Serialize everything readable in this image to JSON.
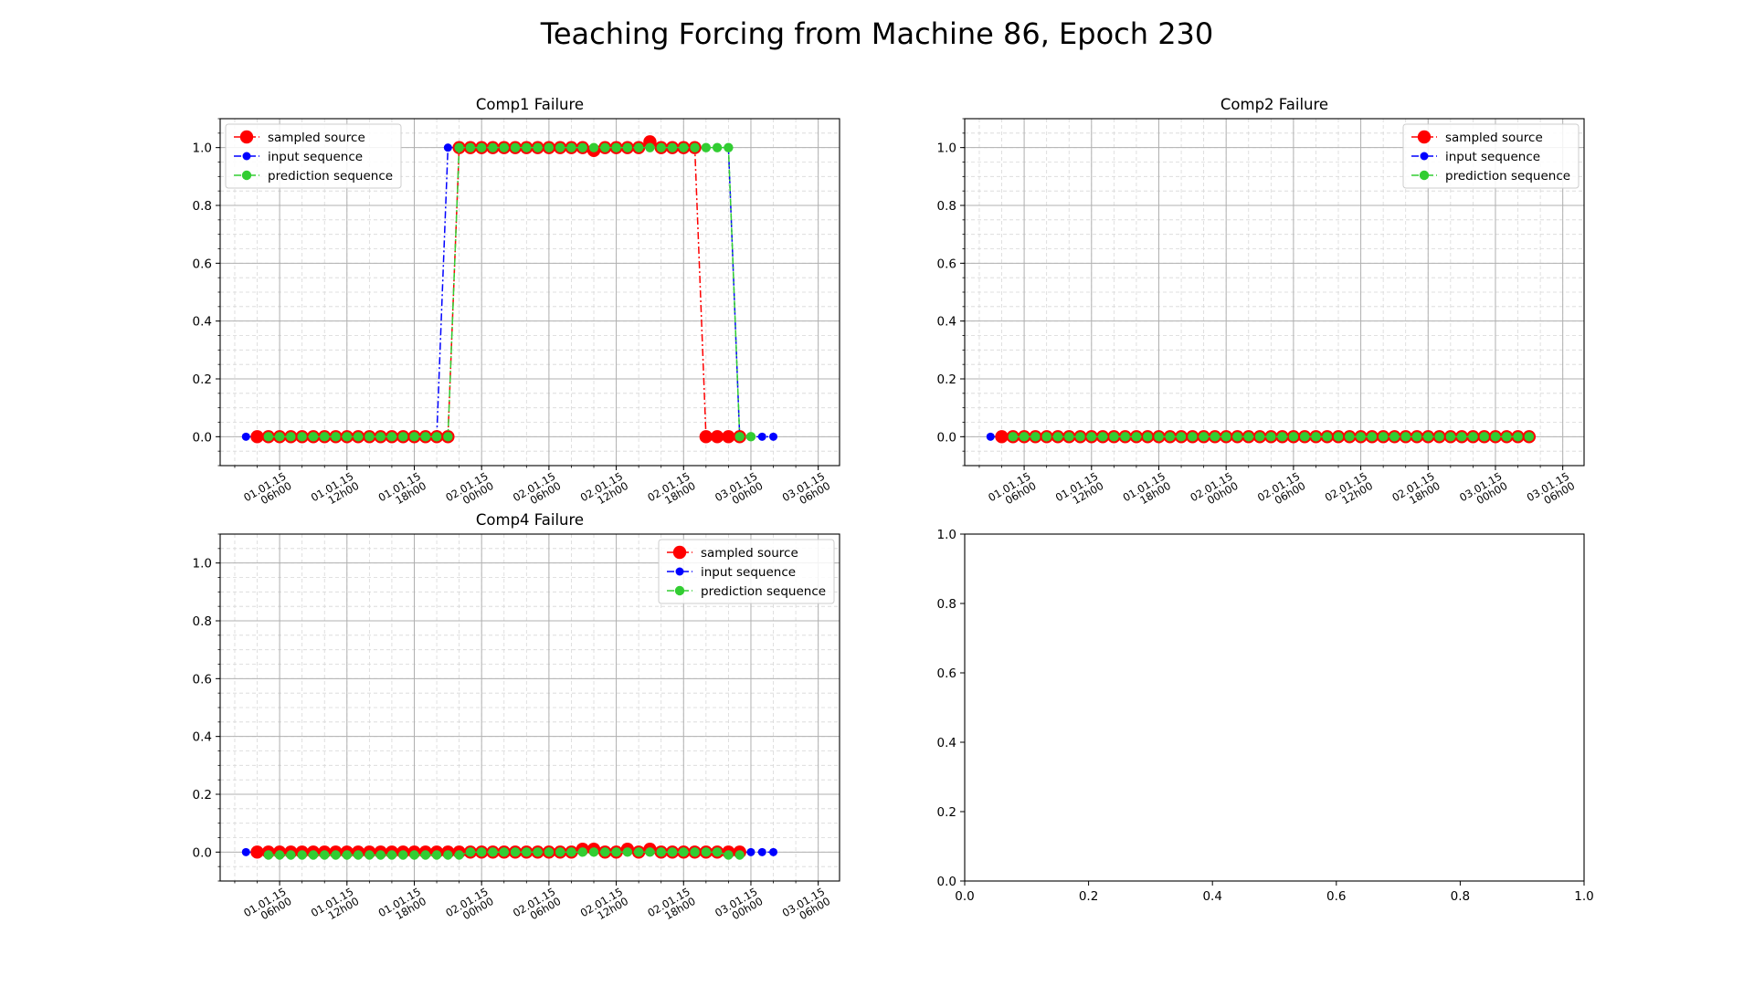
{
  "figure": {
    "title": "Teaching Forcing from Machine 86, Epoch 230"
  },
  "chart_data": [
    {
      "type": "line",
      "title": "Comp1 Failure",
      "xlabel": "",
      "ylabel": "",
      "x_axis": "time",
      "x_start": "2015-01-01 03:00",
      "x_step_hours": 1,
      "x_tick_labels": [
        "01.01.15\n06h00",
        "01.01.15\n12h00",
        "01.01.15\n18h00",
        "02.01.15\n00h00",
        "02.01.15\n06h00",
        "02.01.15\n12h00",
        "02.01.15\n18h00",
        "03.01.15\n00h00",
        "03.01.15\n06h00"
      ],
      "xlim": [
        "2015-01-01 00:42",
        "2015-01-03 07:54"
      ],
      "ylim": [
        -0.1,
        1.1
      ],
      "yticks": [
        0.0,
        0.2,
        0.4,
        0.6,
        0.8,
        1.0
      ],
      "grid": true,
      "minor_grid": true,
      "legend": "top-left",
      "series": [
        {
          "name": "input sequence",
          "color": "#0000ff",
          "line_style": "dashdot",
          "marker_size": "small",
          "x_offset_hours": 0,
          "values": [
            0,
            0,
            0,
            0,
            0,
            0,
            0,
            0,
            0,
            0,
            0,
            0,
            0,
            0,
            0,
            0,
            0,
            0,
            1,
            1,
            1,
            1,
            1,
            1,
            1,
            1,
            1,
            1,
            1,
            1,
            1,
            1,
            1,
            1,
            1,
            1,
            1,
            1,
            1,
            1,
            1,
            1,
            1,
            1,
            0,
            0,
            0,
            0
          ]
        },
        {
          "name": "sampled source",
          "color": "#ff0000",
          "line_style": "dashdot",
          "marker_size": "large",
          "x_offset_hours": 1,
          "values": [
            0,
            0,
            0,
            0,
            0,
            0,
            0,
            0,
            0,
            0,
            0,
            0,
            0,
            0,
            0,
            0,
            0,
            0,
            1,
            1,
            1,
            1,
            1,
            1,
            1,
            1,
            1,
            1,
            1,
            1,
            0.99,
            1,
            1,
            1,
            1,
            1.02,
            1,
            1,
            1,
            1,
            0,
            0,
            0,
            0
          ]
        },
        {
          "name": "prediction sequence",
          "color": "#32cd32",
          "line_style": "dashdot",
          "marker_size": "medium",
          "x_offset_hours": 2,
          "values": [
            0,
            0,
            0,
            0,
            0,
            0,
            0,
            0,
            0,
            0,
            0,
            0,
            0,
            0,
            0,
            0,
            0,
            1,
            1,
            1,
            1,
            1,
            1,
            1,
            1,
            1,
            1,
            1,
            1,
            1,
            1,
            1,
            1,
            1,
            1,
            1,
            1,
            1,
            1,
            1,
            1,
            1,
            0,
            0
          ]
        }
      ]
    },
    {
      "type": "line",
      "title": "Comp2 Failure",
      "xlabel": "",
      "ylabel": "",
      "x_axis": "time",
      "x_start": "2015-01-01 03:00",
      "x_step_hours": 1,
      "x_tick_labels": [
        "01.01.15\n06h00",
        "01.01.15\n12h00",
        "01.01.15\n18h00",
        "02.01.15\n00h00",
        "02.01.15\n06h00",
        "02.01.15\n12h00",
        "02.01.15\n18h00",
        "03.01.15\n00h00",
        "03.01.15\n06h00"
      ],
      "xlim": [
        "2015-01-01 00:42",
        "2015-01-03 07:54"
      ],
      "ylim": [
        -0.1,
        1.1
      ],
      "yticks": [
        0.0,
        0.2,
        0.4,
        0.6,
        0.8,
        1.0
      ],
      "grid": true,
      "minor_grid": true,
      "legend": "top-right",
      "series": [
        {
          "name": "input sequence",
          "color": "#0000ff",
          "line_style": "dashdot",
          "marker_size": "small",
          "x_offset_hours": 0,
          "values": [
            0,
            0,
            0,
            0,
            0,
            0,
            0,
            0,
            0,
            0,
            0,
            0,
            0,
            0,
            0,
            0,
            0,
            0,
            0,
            0,
            0,
            0,
            0,
            0,
            0,
            0,
            0,
            0,
            0,
            0,
            0,
            0,
            0,
            0,
            0,
            0,
            0,
            0,
            0,
            0,
            0,
            0,
            0,
            0,
            0,
            0,
            0,
            0
          ]
        },
        {
          "name": "sampled source",
          "color": "#ff0000",
          "line_style": "dashdot",
          "marker_size": "large",
          "x_offset_hours": 1,
          "values": [
            0,
            0,
            0,
            0,
            0,
            0,
            0,
            0,
            0,
            0,
            0,
            0,
            0,
            0,
            0,
            0,
            0,
            0,
            0,
            0,
            0,
            0,
            0,
            0,
            0,
            0,
            0,
            0,
            0,
            0,
            0,
            0,
            0,
            0,
            0,
            0,
            0,
            0,
            0,
            0,
            0,
            0,
            0,
            0,
            0,
            0,
            0,
            0
          ]
        },
        {
          "name": "prediction sequence",
          "color": "#32cd32",
          "line_style": "dashdot",
          "marker_size": "medium",
          "x_offset_hours": 2,
          "values": [
            0,
            0,
            0,
            0,
            0,
            0,
            0,
            0,
            0,
            0,
            0,
            0,
            0,
            0,
            0,
            0,
            0,
            0,
            0,
            0,
            0,
            0,
            0,
            0,
            0,
            0,
            0,
            0,
            0,
            0,
            0,
            0,
            0,
            0,
            0,
            0,
            0,
            0,
            0,
            0,
            0,
            0,
            0,
            0,
            0,
            0,
            0
          ]
        }
      ]
    },
    {
      "type": "line",
      "title": "Comp4 Failure",
      "xlabel": "",
      "ylabel": "",
      "x_axis": "time",
      "x_start": "2015-01-01 03:00",
      "x_step_hours": 1,
      "x_tick_labels": [
        "01.01.15\n06h00",
        "01.01.15\n12h00",
        "01.01.15\n18h00",
        "02.01.15\n00h00",
        "02.01.15\n06h00",
        "02.01.15\n12h00",
        "02.01.15\n18h00",
        "03.01.15\n00h00",
        "03.01.15\n06h00"
      ],
      "xlim": [
        "2015-01-01 00:42",
        "2015-01-03 07:54"
      ],
      "ylim": [
        -0.1,
        1.1
      ],
      "yticks": [
        0.0,
        0.2,
        0.4,
        0.6,
        0.8,
        1.0
      ],
      "grid": true,
      "minor_grid": true,
      "legend": "top-right",
      "series": [
        {
          "name": "input sequence",
          "color": "#0000ff",
          "line_style": "dashdot",
          "marker_size": "small",
          "x_offset_hours": 0,
          "values": [
            0,
            0,
            0,
            0,
            0,
            0,
            0,
            0,
            0,
            0,
            0,
            0,
            0,
            0,
            0,
            0,
            0,
            0,
            0,
            0,
            0,
            0,
            0,
            0,
            0,
            0,
            0,
            0,
            0,
            0,
            0,
            0,
            0,
            0,
            0,
            0,
            0,
            0,
            0,
            0,
            0,
            0,
            0,
            0,
            0,
            0,
            0,
            0
          ]
        },
        {
          "name": "sampled source",
          "color": "#ff0000",
          "line_style": "dashdot",
          "marker_size": "large",
          "x_offset_hours": 1,
          "values": [
            0,
            0,
            0,
            0,
            0,
            0,
            0,
            0,
            0,
            0,
            0,
            0,
            0,
            0,
            0,
            0,
            0,
            0,
            0,
            0,
            0,
            0,
            0,
            0,
            0,
            0,
            0,
            0,
            0,
            0.01,
            0.01,
            0,
            0,
            0.01,
            0,
            0.01,
            0,
            0,
            0,
            0,
            0,
            0,
            0,
            0
          ]
        },
        {
          "name": "prediction sequence",
          "color": "#32cd32",
          "line_style": "dashdot",
          "marker_size": "medium",
          "x_offset_hours": 2,
          "values": [
            -0.01,
            -0.01,
            -0.01,
            -0.01,
            -0.01,
            -0.01,
            -0.01,
            -0.01,
            -0.01,
            -0.01,
            -0.01,
            -0.01,
            -0.01,
            -0.01,
            -0.01,
            -0.01,
            -0.01,
            -0.01,
            0,
            0,
            0,
            0,
            0,
            0,
            0,
            0,
            0,
            0,
            0,
            0,
            0,
            0,
            0,
            0,
            0,
            0,
            0,
            0,
            0,
            0,
            0,
            -0.01,
            -0.01
          ]
        }
      ]
    },
    {
      "type": "line",
      "title": "",
      "xlim": [
        0.0,
        1.0
      ],
      "ylim": [
        0.0,
        1.0
      ],
      "xticks": [
        0.0,
        0.2,
        0.4,
        0.6,
        0.8,
        1.0
      ],
      "yticks": [
        0.0,
        0.2,
        0.4,
        0.6,
        0.8,
        1.0
      ],
      "grid": false,
      "series": []
    }
  ]
}
